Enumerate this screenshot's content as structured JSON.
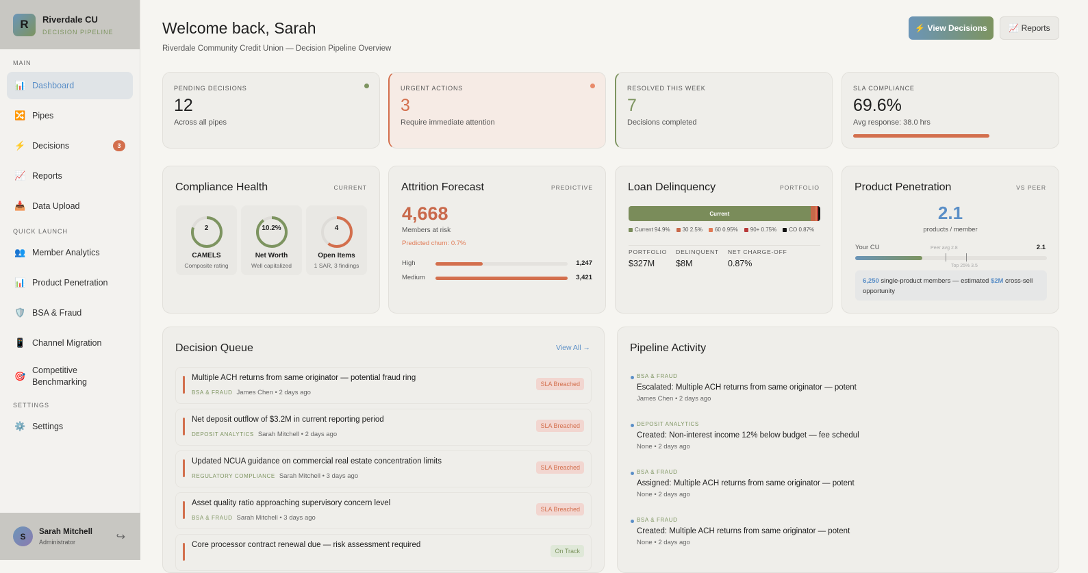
{
  "brand": {
    "initial": "R",
    "name": "Riverdale CU",
    "subtitle": "DECISION PIPELINE"
  },
  "sidebar": {
    "main_label": "MAIN",
    "main": [
      {
        "icon": "📊",
        "label": "Dashboard"
      },
      {
        "icon": "🔀",
        "label": "Pipes"
      },
      {
        "icon": "⚡",
        "label": "Decisions",
        "badge": "3"
      },
      {
        "icon": "📈",
        "label": "Reports"
      },
      {
        "icon": "📥",
        "label": "Data Upload"
      }
    ],
    "quick_label": "QUICK LAUNCH",
    "quick": [
      {
        "icon": "👥",
        "label": "Member Analytics"
      },
      {
        "icon": "📊",
        "label": "Product Penetration"
      },
      {
        "icon": "🛡️",
        "label": "BSA & Fraud"
      },
      {
        "icon": "📱",
        "label": "Channel Migration"
      },
      {
        "icon": "🎯",
        "label": "Competitive Benchmarking"
      }
    ],
    "settings_label": "SETTINGS",
    "settings": [
      {
        "icon": "⚙️",
        "label": "Settings"
      }
    ]
  },
  "user": {
    "initial": "S",
    "name": "Sarah Mitchell",
    "role": "Administrator",
    "logout_icon": "↪"
  },
  "header": {
    "title": "Welcome back, Sarah",
    "subtitle": "Riverdale Community Credit Union — Decision Pipeline Overview",
    "view_decisions": "⚡ View Decisions",
    "reports": "📈 Reports"
  },
  "kpis": [
    {
      "label": "PENDING DECISIONS",
      "value": "12",
      "sub": "Across all pipes"
    },
    {
      "label": "URGENT ACTIONS",
      "value": "3",
      "sub": "Require immediate attention"
    },
    {
      "label": "RESOLVED THIS WEEK",
      "value": "7",
      "sub": "Decisions completed"
    },
    {
      "label": "SLA COMPLIANCE",
      "value": "69.6%",
      "sub": "Avg response: 38.0 hrs",
      "progress": 69.6
    }
  ],
  "compliance": {
    "title": "Compliance Health",
    "tag": "CURRENT",
    "gauges": [
      {
        "value": "2",
        "name": "CAMELS",
        "sub": "Composite rating",
        "fill": 0.8,
        "color": "#7d9460"
      },
      {
        "value": "10.2%",
        "name": "Net Worth",
        "sub": "Well capitalized",
        "fill": 0.9,
        "color": "#7d9460"
      },
      {
        "value": "4",
        "name": "Open Items",
        "sub": "1 SAR, 3 findings",
        "fill": 0.6,
        "color": "#d36f4d"
      }
    ]
  },
  "attrition": {
    "title": "Attrition Forecast",
    "tag": "PREDICTIVE",
    "value": "4,668",
    "sub": "Members at risk",
    "churn": "Predicted churn: 0.7%",
    "rows": [
      {
        "label": "High",
        "value": "1,247",
        "fill": 36
      },
      {
        "label": "Medium",
        "value": "3,421",
        "fill": 100
      }
    ]
  },
  "delinquency": {
    "title": "Loan Delinquency",
    "tag": "PORTFOLIO",
    "bar_label": "Current",
    "segments": [
      {
        "label": "Current 94.9%",
        "pct": 94.9,
        "color": "#7a8c5a"
      },
      {
        "label": "30 2.5%",
        "pct": 2.5,
        "color": "#c8694a"
      },
      {
        "label": "60 0.95%",
        "pct": 0.95,
        "color": "#e07a55"
      },
      {
        "label": "90+ 0.75%",
        "pct": 0.75,
        "color": "#b83a3a"
      },
      {
        "label": "CO 0.87%",
        "pct": 0.87,
        "color": "#111111"
      }
    ],
    "stats": [
      {
        "label": "PORTFOLIO",
        "value": "$327M"
      },
      {
        "label": "DELINQUENT",
        "value": "$8M"
      },
      {
        "label": "NET CHARGE-OFF",
        "value": "0.87%"
      }
    ]
  },
  "penetration": {
    "title": "Product Penetration",
    "tag": "VS PEER",
    "value": "2.1",
    "unit": "products / member",
    "your_label": "Your CU",
    "your_value": "2.1",
    "peer": "Peer avg 2.8",
    "top": "Top 25% 3.5",
    "note_num": "6,250",
    "note_mid": " single-product members — estimated ",
    "note_amt": "$2M",
    "note_end": " cross-sell opportunity"
  },
  "queue": {
    "title": "Decision Queue",
    "view_all": "View All →",
    "items": [
      {
        "title": "Multiple ACH returns from same originator — potential fraud ring",
        "cat": "BSA & FRAUD",
        "meta": "James Chen • 2 days ago",
        "status": "SLA Breached"
      },
      {
        "title": "Net deposit outflow of $3.2M in current reporting period",
        "cat": "DEPOSIT ANALYTICS",
        "meta": "Sarah Mitchell • 2 days ago",
        "status": "SLA Breached"
      },
      {
        "title": "Updated NCUA guidance on commercial real estate concentration limits",
        "cat": "REGULATORY COMPLIANCE",
        "meta": "Sarah Mitchell • 3 days ago",
        "status": "SLA Breached"
      },
      {
        "title": "Asset quality ratio approaching supervisory concern level",
        "cat": "BSA & FRAUD",
        "meta": "Sarah Mitchell • 3 days ago",
        "status": "SLA Breached"
      },
      {
        "title": "Core processor contract renewal due — risk assessment required",
        "cat": "",
        "meta": "",
        "status": "On Track"
      }
    ]
  },
  "activity": {
    "title": "Pipeline Activity",
    "items": [
      {
        "cat": "BSA & FRAUD",
        "text": "Escalated: Multiple ACH returns from same originator — potent",
        "meta": "James Chen • 2 days ago"
      },
      {
        "cat": "DEPOSIT ANALYTICS",
        "text": "Created: Non-interest income 12% below budget — fee schedul",
        "meta": "None • 2 days ago"
      },
      {
        "cat": "BSA & FRAUD",
        "text": "Assigned: Multiple ACH returns from same originator — potent",
        "meta": "None • 2 days ago"
      },
      {
        "cat": "BSA & FRAUD",
        "text": "Created: Multiple ACH returns from same originator — potent",
        "meta": "None • 2 days ago"
      }
    ]
  }
}
